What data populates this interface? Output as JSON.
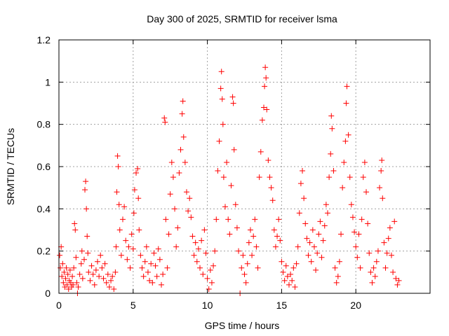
{
  "chart_data": {
    "type": "scatter",
    "title": "Day 300 of 2025, SRMTID for receiver lsma",
    "xlabel": "GPS time / hours",
    "ylabel": "SRMTID / TECUs",
    "xlim": [
      0,
      25
    ],
    "ylim": [
      0,
      1.2
    ],
    "xticks": [
      0,
      5,
      10,
      15,
      20
    ],
    "yticks": [
      0,
      0.2,
      0.4,
      0.6,
      0.8,
      1,
      1.2
    ],
    "ytick_labels": [
      "0",
      "0.2",
      "0.4",
      "0.6",
      "0.8",
      "1",
      "1.2"
    ],
    "grid": true,
    "marker": "+",
    "color": "#ff0000",
    "series": [
      {
        "name": "SRMTID",
        "points": [
          [
            0.05,
            0.18
          ],
          [
            0.1,
            0.12
          ],
          [
            0.15,
            0.22
          ],
          [
            0.2,
            0.08
          ],
          [
            0.25,
            0.14
          ],
          [
            0.3,
            0.05
          ],
          [
            0.35,
            0.1
          ],
          [
            0.4,
            0.03
          ],
          [
            0.45,
            0.07
          ],
          [
            0.5,
            0.12
          ],
          [
            0.55,
            0.04
          ],
          [
            0.6,
            0.09
          ],
          [
            0.65,
            0.02
          ],
          [
            0.7,
            0.06
          ],
          [
            0.75,
            0.11
          ],
          [
            0.8,
            0.05
          ],
          [
            0.85,
            0.03
          ],
          [
            0.9,
            0.08
          ],
          [
            0.95,
            0.04
          ],
          [
            1.0,
            0.12
          ],
          [
            1.05,
            0.33
          ],
          [
            1.1,
            0.3
          ],
          [
            1.15,
            0.17
          ],
          [
            1.2,
            0.05
          ],
          [
            1.25,
            0.0
          ],
          [
            1.3,
            0.03
          ],
          [
            1.4,
            0.09
          ],
          [
            1.5,
            0.14
          ],
          [
            1.55,
            0.2
          ],
          [
            1.6,
            0.07
          ],
          [
            1.7,
            0.16
          ],
          [
            1.75,
            0.49
          ],
          [
            1.8,
            0.53
          ],
          [
            1.85,
            0.4
          ],
          [
            1.9,
            0.27
          ],
          [
            1.95,
            0.19
          ],
          [
            2.0,
            0.1
          ],
          [
            2.1,
            0.06
          ],
          [
            2.2,
            0.13
          ],
          [
            2.3,
            0.09
          ],
          [
            2.4,
            0.04
          ],
          [
            2.5,
            0.11
          ],
          [
            2.6,
            0.15
          ],
          [
            2.7,
            0.08
          ],
          [
            2.8,
            0.18
          ],
          [
            2.9,
            0.12
          ],
          [
            3.0,
            0.07
          ],
          [
            3.1,
            0.14
          ],
          [
            3.2,
            0.05
          ],
          [
            3.3,
            0.09
          ],
          [
            3.4,
            0.03
          ],
          [
            3.5,
            0.06
          ],
          [
            3.6,
            0.08
          ],
          [
            3.7,
            0.02
          ],
          [
            3.8,
            0.1
          ],
          [
            3.85,
            0.22
          ],
          [
            3.9,
            0.48
          ],
          [
            3.95,
            0.65
          ],
          [
            4.0,
            0.6
          ],
          [
            4.05,
            0.42
          ],
          [
            4.1,
            0.3
          ],
          [
            4.2,
            0.18
          ],
          [
            4.3,
            0.35
          ],
          [
            4.4,
            0.41
          ],
          [
            4.5,
            0.25
          ],
          [
            4.6,
            0.16
          ],
          [
            4.7,
            0.22
          ],
          [
            4.8,
            0.12
          ],
          [
            4.9,
            0.28
          ],
          [
            5.0,
            0.21
          ],
          [
            5.05,
            0.38
          ],
          [
            5.1,
            0.49
          ],
          [
            5.2,
            0.57
          ],
          [
            5.3,
            0.59
          ],
          [
            5.35,
            0.45
          ],
          [
            5.4,
            0.3
          ],
          [
            5.5,
            0.18
          ],
          [
            5.6,
            0.12
          ],
          [
            5.7,
            0.08
          ],
          [
            5.8,
            0.15
          ],
          [
            5.9,
            0.22
          ],
          [
            6.0,
            0.1
          ],
          [
            6.1,
            0.06
          ],
          [
            6.2,
            0.14
          ],
          [
            6.3,
            0.05
          ],
          [
            6.4,
            0.19
          ],
          [
            6.5,
            0.13
          ],
          [
            6.6,
            0.08
          ],
          [
            6.7,
            0.21
          ],
          [
            6.8,
            0.16
          ],
          [
            6.9,
            0.04
          ],
          [
            7.0,
            0.09
          ],
          [
            7.1,
            0.83
          ],
          [
            7.15,
            0.81
          ],
          [
            7.2,
            0.35
          ],
          [
            7.3,
            0.12
          ],
          [
            7.4,
            0.28
          ],
          [
            7.5,
            0.47
          ],
          [
            7.6,
            0.62
          ],
          [
            7.7,
            0.55
          ],
          [
            7.8,
            0.4
          ],
          [
            7.9,
            0.22
          ],
          [
            8.0,
            0.31
          ],
          [
            8.1,
            0.57
          ],
          [
            8.2,
            0.68
          ],
          [
            8.3,
            0.85
          ],
          [
            8.35,
            0.91
          ],
          [
            8.4,
            0.74
          ],
          [
            8.5,
            0.62
          ],
          [
            8.6,
            0.48
          ],
          [
            8.7,
            0.39
          ],
          [
            8.8,
            0.45
          ],
          [
            8.9,
            0.36
          ],
          [
            9.0,
            0.27
          ],
          [
            9.1,
            0.18
          ],
          [
            9.2,
            0.24
          ],
          [
            9.3,
            0.15
          ],
          [
            9.4,
            0.21
          ],
          [
            9.5,
            0.12
          ],
          [
            9.6,
            0.25
          ],
          [
            9.7,
            0.09
          ],
          [
            9.8,
            0.3
          ],
          [
            9.9,
            0.19
          ],
          [
            10.0,
            0.07
          ],
          [
            10.1,
            0.02
          ],
          [
            10.2,
            0.11
          ],
          [
            10.3,
            0.05
          ],
          [
            10.4,
            0.13
          ],
          [
            10.5,
            0.2
          ],
          [
            10.6,
            0.35
          ],
          [
            10.7,
            0.58
          ],
          [
            10.8,
            0.72
          ],
          [
            10.9,
            0.97
          ],
          [
            10.95,
            1.05
          ],
          [
            11.0,
            0.92
          ],
          [
            11.05,
            0.8
          ],
          [
            11.1,
            0.55
          ],
          [
            11.2,
            0.41
          ],
          [
            11.3,
            0.62
          ],
          [
            11.4,
            0.35
          ],
          [
            11.5,
            0.28
          ],
          [
            11.6,
            0.51
          ],
          [
            11.7,
            0.93
          ],
          [
            11.75,
            0.9
          ],
          [
            11.8,
            0.68
          ],
          [
            11.9,
            0.42
          ],
          [
            12.0,
            0.31
          ],
          [
            12.1,
            0.2
          ],
          [
            12.2,
            0.0
          ],
          [
            12.3,
            0.12
          ],
          [
            12.4,
            0.18
          ],
          [
            12.5,
            0.09
          ],
          [
            12.6,
            0.05
          ],
          [
            12.7,
            0.14
          ],
          [
            12.8,
            0.24
          ],
          [
            12.9,
            0.3
          ],
          [
            13.0,
            0.18
          ],
          [
            13.1,
            0.27
          ],
          [
            13.2,
            0.35
          ],
          [
            13.3,
            0.22
          ],
          [
            13.4,
            0.12
          ],
          [
            13.5,
            0.55
          ],
          [
            13.6,
            0.67
          ],
          [
            13.7,
            0.82
          ],
          [
            13.8,
            0.88
          ],
          [
            13.85,
            0.98
          ],
          [
            13.9,
            1.07
          ],
          [
            13.95,
            1.02
          ],
          [
            14.0,
            0.87
          ],
          [
            14.1,
            0.63
          ],
          [
            14.2,
            0.55
          ],
          [
            14.3,
            0.5
          ],
          [
            14.4,
            0.44
          ],
          [
            14.5,
            0.3
          ],
          [
            14.6,
            0.22
          ],
          [
            14.7,
            0.27
          ],
          [
            14.8,
            0.35
          ],
          [
            14.9,
            0.25
          ],
          [
            15.0,
            0.15
          ],
          [
            15.1,
            0.1
          ],
          [
            15.2,
            0.06
          ],
          [
            15.3,
            0.13
          ],
          [
            15.4,
            0.08
          ],
          [
            15.5,
            0.04
          ],
          [
            15.6,
            0.09
          ],
          [
            15.7,
            0.06
          ],
          [
            15.8,
            0.12
          ],
          [
            15.9,
            0.03
          ],
          [
            16.0,
            0.14
          ],
          [
            16.1,
            0.22
          ],
          [
            16.2,
            0.38
          ],
          [
            16.3,
            0.52
          ],
          [
            16.4,
            0.58
          ],
          [
            16.5,
            0.45
          ],
          [
            16.6,
            0.33
          ],
          [
            16.7,
            0.26
          ],
          [
            16.8,
            0.18
          ],
          [
            16.9,
            0.24
          ],
          [
            17.0,
            0.15
          ],
          [
            17.1,
            0.3
          ],
          [
            17.2,
            0.22
          ],
          [
            17.3,
            0.11
          ],
          [
            17.4,
            0.19
          ],
          [
            17.5,
            0.28
          ],
          [
            17.6,
            0.34
          ],
          [
            17.7,
            0.17
          ],
          [
            17.8,
            0.25
          ],
          [
            17.9,
            0.32
          ],
          [
            18.0,
            0.42
          ],
          [
            18.1,
            0.38
          ],
          [
            18.2,
            0.55
          ],
          [
            18.3,
            0.66
          ],
          [
            18.35,
            0.84
          ],
          [
            18.4,
            0.78
          ],
          [
            18.5,
            0.58
          ],
          [
            18.6,
            0.12
          ],
          [
            18.7,
            0.05
          ],
          [
            18.8,
            0.08
          ],
          [
            18.9,
            0.15
          ],
          [
            19.0,
            0.28
          ],
          [
            19.1,
            0.5
          ],
          [
            19.2,
            0.62
          ],
          [
            19.3,
            0.72
          ],
          [
            19.35,
            0.9
          ],
          [
            19.4,
            0.98
          ],
          [
            19.5,
            0.75
          ],
          [
            19.6,
            0.55
          ],
          [
            19.7,
            0.42
          ],
          [
            19.8,
            0.36
          ],
          [
            19.9,
            0.29
          ],
          [
            20.0,
            0.22
          ],
          [
            20.1,
            0.17
          ],
          [
            20.2,
            0.28
          ],
          [
            20.3,
            0.12
          ],
          [
            20.4,
            0.35
          ],
          [
            20.5,
            0.55
          ],
          [
            20.6,
            0.62
          ],
          [
            20.7,
            0.48
          ],
          [
            20.8,
            0.33
          ],
          [
            20.9,
            0.19
          ],
          [
            21.0,
            0.1
          ],
          [
            21.1,
            0.05
          ],
          [
            21.2,
            0.12
          ],
          [
            21.3,
            0.08
          ],
          [
            21.4,
            0.15
          ],
          [
            21.5,
            0.2
          ],
          [
            21.6,
            0.5
          ],
          [
            21.7,
            0.58
          ],
          [
            21.75,
            0.63
          ],
          [
            21.8,
            0.45
          ],
          [
            21.9,
            0.24
          ],
          [
            22.0,
            0.12
          ],
          [
            22.1,
            0.19
          ],
          [
            22.2,
            0.26
          ],
          [
            22.3,
            0.31
          ],
          [
            22.4,
            0.18
          ],
          [
            22.5,
            0.1
          ],
          [
            22.6,
            0.34
          ],
          [
            22.7,
            0.07
          ],
          [
            22.8,
            0.04
          ],
          [
            22.9,
            0.06
          ]
        ]
      }
    ]
  }
}
